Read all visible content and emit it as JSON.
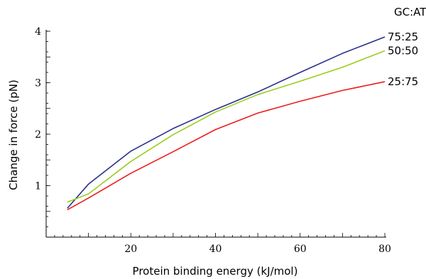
{
  "chart_data": {
    "type": "line",
    "xlabel": "Protein binding energy (kJ/mol)",
    "ylabel": "Change in force (pN)",
    "legend_title": "GC:AT",
    "xlim": [
      0,
      80
    ],
    "ylim": [
      0,
      4
    ],
    "xticks": [
      20,
      40,
      60,
      80
    ],
    "yticks": [
      1,
      2,
      3,
      4
    ],
    "grid": false,
    "legend_placement": "right, at line ends",
    "series": [
      {
        "name": "75:25",
        "color": "#2b2f8c",
        "x": [
          5,
          10,
          20,
          30,
          40,
          50,
          60,
          70,
          80
        ],
        "y": [
          0.56,
          1.03,
          1.67,
          2.11,
          2.48,
          2.82,
          3.2,
          3.57,
          3.89
        ]
      },
      {
        "name": "50:50",
        "color": "#9acd1e",
        "x": [
          5,
          10,
          20,
          30,
          40,
          50,
          60,
          70,
          80
        ],
        "y": [
          0.68,
          0.84,
          1.47,
          1.99,
          2.43,
          2.77,
          3.03,
          3.3,
          3.62
        ]
      },
      {
        "name": "25:75",
        "color": "#ee1c1c",
        "x": [
          5,
          10,
          20,
          30,
          40,
          50,
          60,
          70,
          80
        ],
        "y": [
          0.53,
          0.76,
          1.24,
          1.66,
          2.09,
          2.41,
          2.64,
          2.85,
          3.02
        ]
      }
    ]
  }
}
